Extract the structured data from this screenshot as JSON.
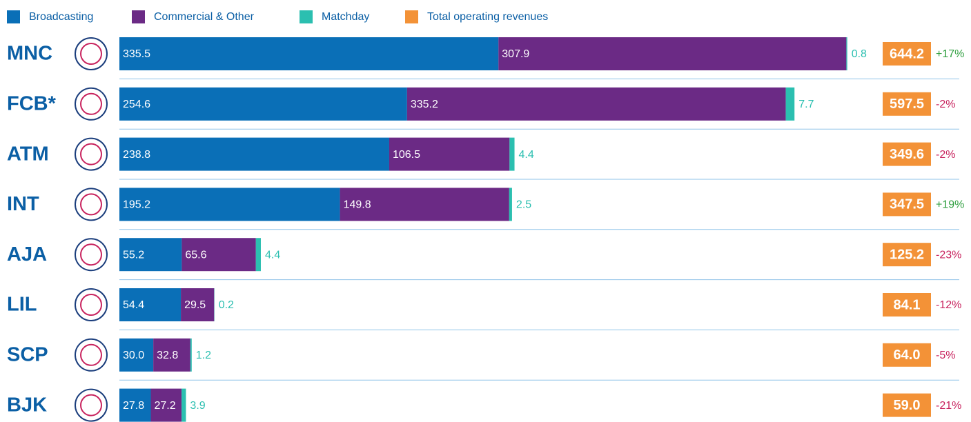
{
  "chart_data": {
    "type": "stacked-bar-horizontal",
    "categories": [
      "MNC",
      "FCB*",
      "ATM",
      "INT",
      "AJA",
      "LIL",
      "SCP",
      "BJK"
    ],
    "series": [
      {
        "name": "Broadcasting",
        "color": "#0a6fb7",
        "values": [
          335.5,
          254.6,
          238.8,
          195.2,
          55.2,
          54.4,
          30.0,
          27.8
        ],
        "value_labels": [
          "335.5",
          "254.6",
          "238.8",
          "195.2",
          "55.2",
          "54.4",
          "30.0",
          "27.8"
        ]
      },
      {
        "name": "Commercial & Other",
        "color": "#6b2a85",
        "values": [
          307.9,
          335.2,
          106.5,
          149.8,
          65.6,
          29.5,
          32.8,
          27.2
        ],
        "value_labels": [
          "307.9",
          "335.2",
          "106.5",
          "149.8",
          "65.6",
          "29.5",
          "32.8",
          "27.2"
        ]
      },
      {
        "name": "Matchday",
        "color": "#2bbfb0",
        "values": [
          0.8,
          7.7,
          4.4,
          2.5,
          4.4,
          0.2,
          1.2,
          3.9
        ],
        "value_labels": [
          "0.8",
          "7.7",
          "4.4",
          "2.5",
          "4.4",
          "0.2",
          "1.2",
          "3.9"
        ]
      }
    ],
    "total": {
      "name": "Total operating revenues",
      "color": "#f39237",
      "values": [
        644.2,
        597.5,
        349.6,
        347.5,
        125.2,
        84.1,
        64.0,
        59.0
      ],
      "value_labels": [
        "644.2",
        "597.5",
        "349.6",
        "347.5",
        "125.2",
        "84.1",
        "64.0",
        "59.0"
      ]
    },
    "change": {
      "values": [
        17,
        -2,
        -2,
        19,
        -23,
        -12,
        -5,
        -21
      ],
      "value_labels": [
        "+17%",
        "-2%",
        "-2%",
        "+19%",
        "-23%",
        "-12%",
        "-5%",
        "-21%"
      ],
      "positive_color": "#2e9e3e",
      "negative_color": "#c8235e"
    },
    "xlim": [
      0,
      645
    ]
  }
}
